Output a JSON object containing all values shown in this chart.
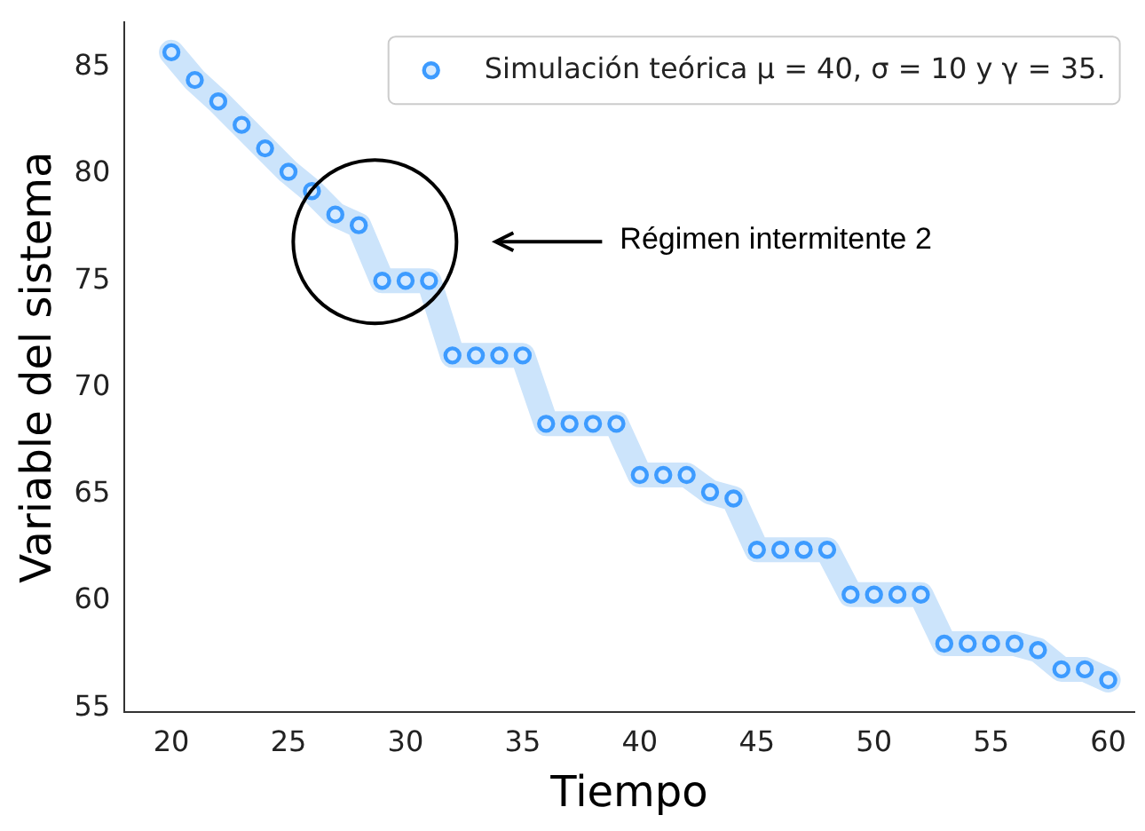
{
  "chart_data": {
    "type": "scatter",
    "xlabel": "Tiempo",
    "ylabel": "Variable del sistema",
    "x": [
      20,
      21,
      22,
      23,
      24,
      25,
      26,
      27,
      28,
      29,
      30,
      31,
      32,
      33,
      34,
      35,
      36,
      37,
      38,
      39,
      40,
      41,
      42,
      43,
      44,
      45,
      46,
      47,
      48,
      49,
      50,
      51,
      52,
      53,
      54,
      55,
      56,
      57,
      58,
      59,
      60
    ],
    "series": [
      {
        "type": "line",
        "color": "#cce4fb",
        "marker": "none",
        "values": [
          85.7,
          84.4,
          83.4,
          82.3,
          81.2,
          80.1,
          79.2,
          78.1,
          77.6,
          75.0,
          75.0,
          75.0,
          71.5,
          71.5,
          71.5,
          71.5,
          68.3,
          68.3,
          68.3,
          68.3,
          65.9,
          65.9,
          65.9,
          65.1,
          64.8,
          62.4,
          62.4,
          62.4,
          62.4,
          60.3,
          60.3,
          60.3,
          60.3,
          58.0,
          58.0,
          58.0,
          58.0,
          57.7,
          56.8,
          56.8,
          56.3
        ]
      },
      {
        "type": "scatter",
        "name": "Simulación teórica μ = 40, σ = 10 y γ = 35.",
        "color": "#3d9bff",
        "values": [
          85.7,
          84.4,
          83.4,
          82.3,
          81.2,
          80.1,
          79.2,
          78.1,
          77.6,
          75.0,
          75.0,
          75.0,
          71.5,
          71.5,
          71.5,
          71.5,
          68.3,
          68.3,
          68.3,
          68.3,
          65.9,
          65.9,
          65.9,
          65.1,
          64.8,
          62.4,
          62.4,
          62.4,
          62.4,
          60.3,
          60.3,
          60.3,
          60.3,
          58.0,
          58.0,
          58.0,
          58.0,
          57.7,
          56.8,
          56.8,
          56.3
        ]
      }
    ],
    "marker": "circle",
    "xlim": [
      18,
      61.1
    ],
    "ylim": [
      54.8,
      87.1
    ],
    "xticks": [
      20,
      25,
      30,
      35,
      40,
      45,
      50,
      55,
      60
    ],
    "yticks": [
      55,
      60,
      65,
      70,
      75,
      80,
      85
    ],
    "legend": "top right",
    "annotations": [
      "Régimen intermitente 2"
    ]
  }
}
